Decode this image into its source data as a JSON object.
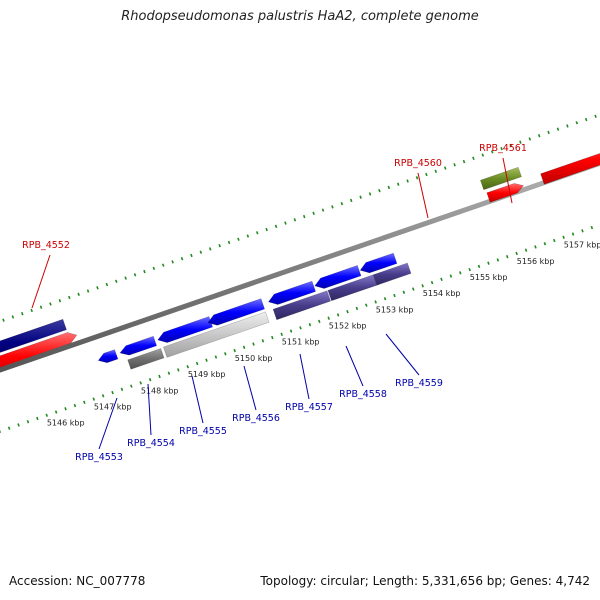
{
  "title": "Rhodopseudomonas palustris HaA2, complete genome",
  "accession": "Accession: NC_007778",
  "topology": "Topology: circular; Length: 5,331,656 bp; Genes: 4,742",
  "ticks": [
    {
      "label": "5146 kbp",
      "kb": 5146
    },
    {
      "label": "5147 kbp",
      "kb": 5147
    },
    {
      "label": "5148 kbp",
      "kb": 5148
    },
    {
      "label": "5149 kbp",
      "kb": 5149
    },
    {
      "label": "5150 kbp",
      "kb": 5150
    },
    {
      "label": "5151 kbp",
      "kb": 5151
    },
    {
      "label": "5152 kbp",
      "kb": 5152
    },
    {
      "label": "5153 kbp",
      "kb": 5153
    },
    {
      "label": "5154 kbp",
      "kb": 5154
    },
    {
      "label": "5155 kbp",
      "kb": 5155
    },
    {
      "label": "5156 kbp",
      "kb": 5156
    },
    {
      "label": "5157 kbp",
      "kb": 5157
    }
  ],
  "top_labels": [
    {
      "name": "RPB_4552"
    },
    {
      "name": "RPB_4560"
    },
    {
      "name": "RPB_4561"
    }
  ],
  "bottom_labels": [
    {
      "name": "RPB_4553"
    },
    {
      "name": "RPB_4554"
    },
    {
      "name": "RPB_4555"
    },
    {
      "name": "RPB_4556"
    },
    {
      "name": "RPB_4557"
    },
    {
      "name": "RPB_4558"
    },
    {
      "name": "RPB_4559"
    }
  ],
  "colors": {
    "cds_forward": "#ff0000",
    "cds_reverse": "#0000ff",
    "gene_dark": "#000080",
    "gene_green": "#6b8e23",
    "gene_grey": "#c0c0c0",
    "gene_dark_grey": "#707070",
    "gene_purple": "#483d8b",
    "backbone": "#808080",
    "tick": "#228b22",
    "label_top": "#cc0000",
    "label_bottom": "#0000aa"
  }
}
